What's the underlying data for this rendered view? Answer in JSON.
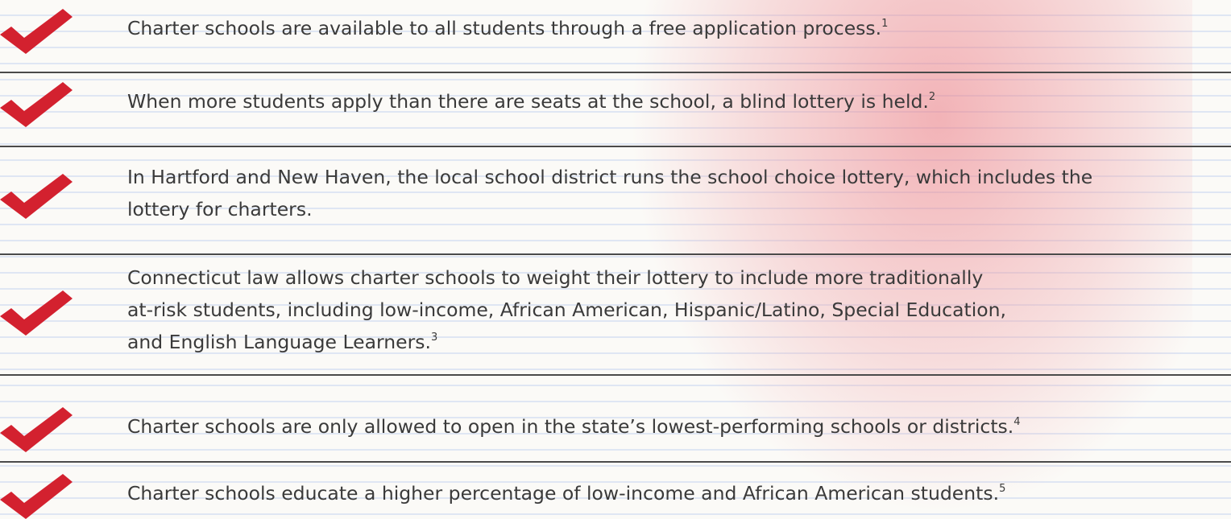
{
  "items": [
    {
      "lines": [
        "Charter schools are available to all students through a free application process."
      ],
      "note": "1"
    },
    {
      "lines": [
        "When more students apply than there are seats at the school, a blind lottery is held."
      ],
      "note": "2"
    },
    {
      "lines": [
        "In Hartford and New Haven, the local school district runs the school choice lottery, which includes the",
        "lottery for charters."
      ]
    },
    {
      "lines": [
        "Connecticut law allows charter schools to weight their lottery to include more traditionally",
        "at-risk students, including low-income, African American, Hispanic/Latino, Special Education,",
        "and English Language Learners."
      ],
      "note": "3"
    },
    {
      "lines": [
        "Charter schools are only allowed to open in the state’s lowest-performing schools or districts."
      ],
      "note": "4"
    },
    {
      "lines": [
        "Charter schools educate a higher percentage of low-income and African American students."
      ],
      "note": "5"
    }
  ]
}
